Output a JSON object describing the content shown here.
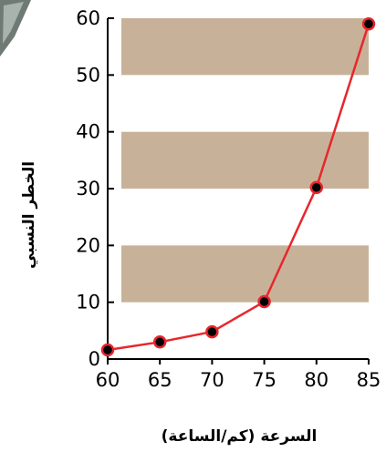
{
  "colors": {
    "band": "#c7b299",
    "line": "#e8262b",
    "marker": "#000000",
    "axis": "#000000",
    "corner_decoration": "#6f7a74"
  },
  "chart_data": {
    "type": "line",
    "xlabel": "السرعة (كم/الساعة)",
    "ylabel": "الخطر النسبي",
    "x": [
      60,
      65,
      70,
      75,
      80,
      85
    ],
    "series": [
      {
        "values": [
          1.6,
          3.0,
          4.8,
          10.1,
          30.2,
          59.0
        ]
      }
    ],
    "xlim": [
      60,
      85
    ],
    "ylim": [
      0,
      60
    ],
    "x_ticks": [
      60,
      65,
      70,
      75,
      80,
      85
    ],
    "y_ticks": [
      0,
      10,
      20,
      30,
      40,
      50,
      60
    ],
    "shaded_bands": [
      [
        10,
        20
      ],
      [
        30,
        40
      ],
      [
        50,
        60
      ]
    ],
    "grid": false,
    "legend": "none"
  }
}
